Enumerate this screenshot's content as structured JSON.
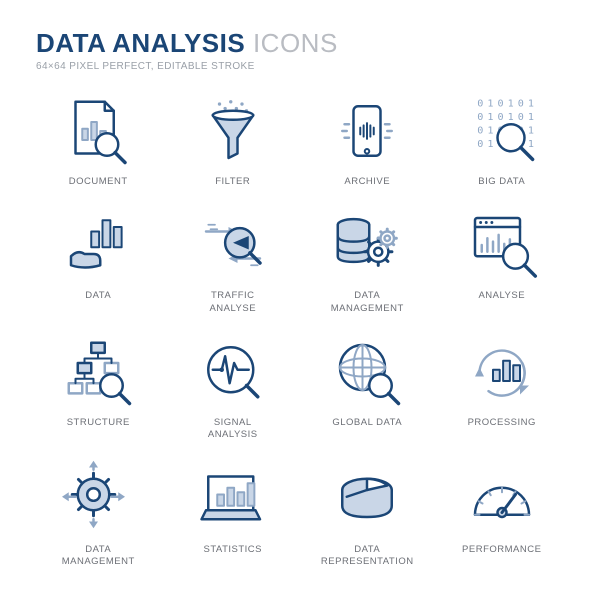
{
  "header": {
    "title_main": "DATA ANALYSIS",
    "title_sub": "ICONS",
    "subtitle": "64×64 PIXEL PERFECT, EDITABLE STROKE"
  },
  "style": {
    "stroke_dark": "#1b4676",
    "stroke_light": "#8fa7c5",
    "fill_light": "#c9d6e7",
    "fill_white": "#ffffff",
    "stroke_width": 2.2,
    "icon_viewbox": 64
  },
  "icons": [
    {
      "id": "document",
      "label": "DOCUMENT"
    },
    {
      "id": "filter",
      "label": "FILTER"
    },
    {
      "id": "archive",
      "label": "ARCHIVE"
    },
    {
      "id": "big-data",
      "label": "BIG DATA"
    },
    {
      "id": "data",
      "label": "DATA"
    },
    {
      "id": "traffic-analyse",
      "label": "TRAFFIC\nANALYSE"
    },
    {
      "id": "data-management",
      "label": "DATA\nMANAGEMENT"
    },
    {
      "id": "analyse",
      "label": "ANALYSE"
    },
    {
      "id": "structure",
      "label": "STRUCTURE"
    },
    {
      "id": "signal-analysis",
      "label": "SIGNAL\nANALYSIS"
    },
    {
      "id": "global-data",
      "label": "GLOBAL DATA"
    },
    {
      "id": "processing",
      "label": "PROCESSING"
    },
    {
      "id": "data-management-2",
      "label": "DATA\nMANAGEMENT"
    },
    {
      "id": "statistics",
      "label": "STATISTICS"
    },
    {
      "id": "data-representation",
      "label": "DATA\nREPRESENTATION"
    },
    {
      "id": "performance",
      "label": "PERFORMANCE"
    }
  ]
}
